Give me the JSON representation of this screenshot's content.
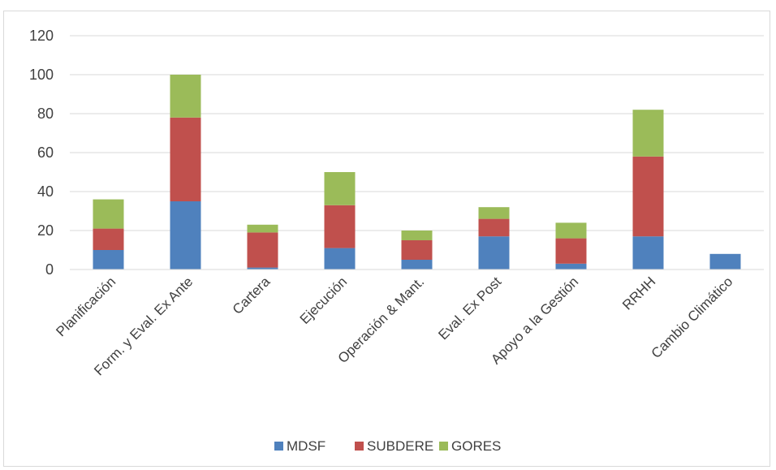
{
  "chart_data": {
    "type": "bar",
    "stacked": true,
    "categories": [
      "Planificación",
      "Form. y Eval. Ex Ante",
      "Cartera",
      "Ejecución",
      "Operación & Mant.",
      "Eval. Ex Post",
      "Apoyo a la Gestión",
      "RRHH",
      "Cambio Climático"
    ],
    "series": [
      {
        "name": "MDSF",
        "color": "#4f81bd",
        "values": [
          10,
          35,
          1,
          11,
          5,
          17,
          3,
          17,
          8
        ]
      },
      {
        "name": "SUBDERE",
        "color": "#c0504d",
        "values": [
          11,
          43,
          18,
          22,
          10,
          9,
          13,
          41,
          0
        ]
      },
      {
        "name": "GORES",
        "color": "#9bbb59",
        "values": [
          15,
          22,
          4,
          17,
          5,
          6,
          8,
          24,
          0
        ]
      }
    ],
    "ylim": [
      0,
      120
    ],
    "yticks": [
      0,
      20,
      40,
      60,
      80,
      100,
      120
    ],
    "grid": true,
    "legend": "bottom",
    "title": "",
    "xlabel": "",
    "ylabel": ""
  }
}
